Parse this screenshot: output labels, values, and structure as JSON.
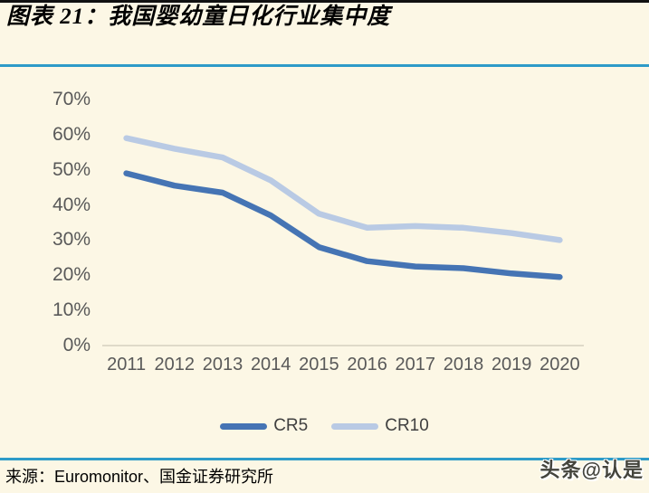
{
  "page": {
    "title": "图表 21：我国婴幼童日化行业集中度",
    "source": "来源：Euromonitor、国金证券研究所",
    "watermark": "头条@认是"
  },
  "colors": {
    "background": "#fcf7e5",
    "top_border": "#111111",
    "title_text": "#000000",
    "rule_blue": "#2e9bc8",
    "tick_text": "#595959",
    "legend_text": "#404040",
    "axis_line": "#d5d0c0",
    "cr5_color": "#4574b4",
    "cr10_color": "#b9cae4",
    "watermark_text": "#44443c"
  },
  "chart_data": {
    "type": "line",
    "title": "我国婴幼童日化行业集中度",
    "categories": [
      "2011",
      "2012",
      "2013",
      "2014",
      "2015",
      "2016",
      "2017",
      "2018",
      "2019",
      "2020"
    ],
    "series": [
      {
        "name": "CR5",
        "color": "#4574b4",
        "values": [
          49,
          45.5,
          43.5,
          37,
          28,
          24,
          22.5,
          22,
          20.5,
          19.5
        ]
      },
      {
        "name": "CR10",
        "color": "#b9cae4",
        "values": [
          59,
          56,
          53.5,
          47,
          37.5,
          33.5,
          34,
          33.5,
          32,
          30
        ]
      }
    ],
    "xlabel": "",
    "ylabel": "",
    "ylim": [
      0,
      70
    ],
    "ytick_step": 10,
    "ytick_labels": [
      "0%",
      "10%",
      "20%",
      "30%",
      "40%",
      "50%",
      "60%",
      "70%"
    ],
    "grid": false,
    "legend_position": "bottom"
  }
}
